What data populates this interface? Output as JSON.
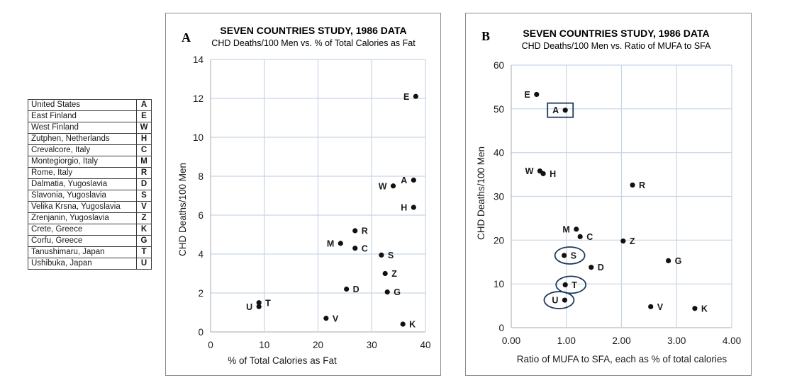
{
  "legend": {
    "rows": [
      {
        "country": "United States",
        "code": "A"
      },
      {
        "country": "East Finland",
        "code": "E"
      },
      {
        "country": "West Finland",
        "code": "W"
      },
      {
        "country": "Zutphen, Netherlands",
        "code": "H"
      },
      {
        "country": "Crevalcore, Italy",
        "code": "C"
      },
      {
        "country": "Montegiorgio, Italy",
        "code": "M"
      },
      {
        "country": "Rome, Italy",
        "code": "R"
      },
      {
        "country": "Dalmatia, Yugoslavia",
        "code": "D"
      },
      {
        "country": "Slavonia, Yugoslavia",
        "code": "S"
      },
      {
        "country": "Velika Krsna, Yugoslavia",
        "code": "V"
      },
      {
        "country": "Zrenjanin, Yugoslavia",
        "code": "Z"
      },
      {
        "country": "Crete, Greece",
        "code": "K"
      },
      {
        "country": "Corfu, Greece",
        "code": "G"
      },
      {
        "country": "Tanushimaru, Japan",
        "code": "T"
      },
      {
        "country": "Ushibuka, Japan",
        "code": "U"
      }
    ]
  },
  "colors": {
    "grid": "#c6d6e6",
    "marker": "#111111",
    "highlight": "#1f3b5c"
  },
  "chart_data": [
    {
      "type": "scatter",
      "panel": "A",
      "title": "SEVEN COUNTRIES STUDY, 1986 DATA",
      "subtitle": "CHD Deaths/100 Men vs. % of Total Calories as Fat",
      "xlabel": "% of Total Calories as Fat",
      "ylabel": "CHD Deaths/100 Men",
      "xlim": [
        0,
        40
      ],
      "ylim": [
        0,
        14
      ],
      "xticks": [
        "0",
        "10",
        "20",
        "30",
        "40"
      ],
      "yticks": [
        "0",
        "2",
        "4",
        "6",
        "8",
        "10",
        "12",
        "14"
      ],
      "grid": true,
      "points": [
        {
          "label": "E",
          "x": 38.2,
          "y": 12.1,
          "label_side": "left"
        },
        {
          "label": "A",
          "x": 37.8,
          "y": 7.8,
          "label_side": "left"
        },
        {
          "label": "W",
          "x": 34.0,
          "y": 7.5,
          "label_side": "left"
        },
        {
          "label": "H",
          "x": 37.8,
          "y": 6.4,
          "label_side": "left"
        },
        {
          "label": "R",
          "x": 26.9,
          "y": 5.2,
          "label_side": "right"
        },
        {
          "label": "M",
          "x": 24.2,
          "y": 4.55,
          "label_side": "left"
        },
        {
          "label": "C",
          "x": 26.9,
          "y": 4.3,
          "label_side": "right"
        },
        {
          "label": "S",
          "x": 31.8,
          "y": 3.95,
          "label_side": "right"
        },
        {
          "label": "Z",
          "x": 32.5,
          "y": 3.0,
          "label_side": "right"
        },
        {
          "label": "D",
          "x": 25.3,
          "y": 2.2,
          "label_side": "right"
        },
        {
          "label": "G",
          "x": 32.9,
          "y": 2.05,
          "label_side": "right"
        },
        {
          "label": "T",
          "x": 9.0,
          "y": 1.5,
          "label_side": "right"
        },
        {
          "label": "U",
          "x": 9.0,
          "y": 1.3,
          "label_side": "left"
        },
        {
          "label": "V",
          "x": 21.5,
          "y": 0.7,
          "label_side": "right"
        },
        {
          "label": "K",
          "x": 35.8,
          "y": 0.4,
          "label_side": "right"
        }
      ]
    },
    {
      "type": "scatter",
      "panel": "B",
      "title": "SEVEN COUNTRIES STUDY, 1986 DATA",
      "subtitle": "CHD Deaths/100 Men vs. Ratio of MUFA to SFA",
      "xlabel": "Ratio of MUFA to SFA, each as % of total calories",
      "ylabel": "CHD Deaths/100 Men",
      "xlim": [
        0,
        4
      ],
      "ylim": [
        0,
        60
      ],
      "xticks": [
        "0.00",
        "1.00",
        "2.00",
        "3.00",
        "4.00"
      ],
      "yticks": [
        "0",
        "10",
        "20",
        "30",
        "40",
        "50",
        "60"
      ],
      "grid": true,
      "points": [
        {
          "label": "E",
          "x": 0.46,
          "y": 53.3,
          "label_side": "left"
        },
        {
          "label": "A",
          "x": 0.98,
          "y": 49.7,
          "label_side": "left",
          "highlight": "box"
        },
        {
          "label": "W",
          "x": 0.52,
          "y": 35.8,
          "label_side": "left"
        },
        {
          "label": "H",
          "x": 0.58,
          "y": 35.2,
          "label_side": "right"
        },
        {
          "label": "R",
          "x": 2.2,
          "y": 32.6,
          "label_side": "right"
        },
        {
          "label": "M",
          "x": 1.18,
          "y": 22.5,
          "label_side": "left"
        },
        {
          "label": "C",
          "x": 1.25,
          "y": 20.8,
          "label_side": "right"
        },
        {
          "label": "Z",
          "x": 2.03,
          "y": 19.8,
          "label_side": "right"
        },
        {
          "label": "S",
          "x": 0.96,
          "y": 16.5,
          "label_side": "right",
          "highlight": "oval"
        },
        {
          "label": "G",
          "x": 2.85,
          "y": 15.3,
          "label_side": "right"
        },
        {
          "label": "D",
          "x": 1.45,
          "y": 13.8,
          "label_side": "right"
        },
        {
          "label": "T",
          "x": 0.98,
          "y": 9.8,
          "label_side": "right",
          "highlight": "oval"
        },
        {
          "label": "U",
          "x": 0.97,
          "y": 6.3,
          "label_side": "left",
          "highlight": "oval"
        },
        {
          "label": "V",
          "x": 2.53,
          "y": 4.8,
          "label_side": "right"
        },
        {
          "label": "K",
          "x": 3.33,
          "y": 4.4,
          "label_side": "right"
        }
      ]
    }
  ]
}
